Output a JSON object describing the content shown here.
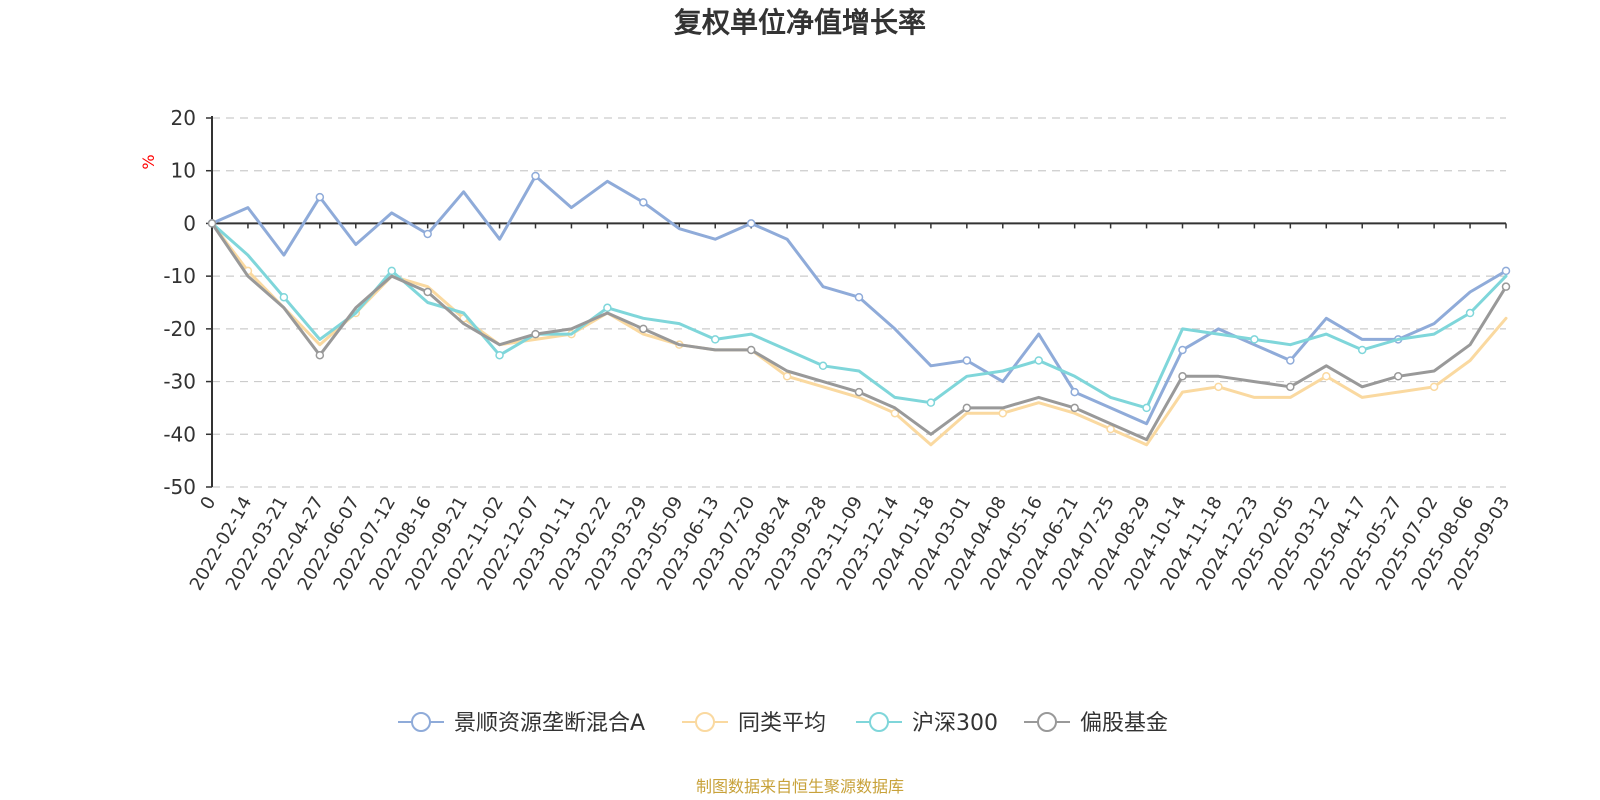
{
  "chart_data": {
    "type": "line",
    "title": "复权单位净值增长率",
    "ylabel": "%",
    "ylim": [
      -50,
      20
    ],
    "yticks": [
      "20",
      "10",
      "0",
      "-10",
      "-20",
      "-30",
      "-40",
      "-50"
    ],
    "grid": true,
    "legend_position": "bottom",
    "categories": [
      "0",
      "2022-02-14",
      "2022-03-21",
      "2022-04-27",
      "2022-06-07",
      "2022-07-12",
      "2022-08-16",
      "2022-09-21",
      "2022-11-02",
      "2022-12-07",
      "2023-01-11",
      "2023-02-22",
      "2023-03-29",
      "2023-05-09",
      "2023-06-13",
      "2023-07-20",
      "2023-08-24",
      "2023-09-28",
      "2023-11-09",
      "2023-12-14",
      "2024-01-18",
      "2024-03-01",
      "2024-04-08",
      "2024-05-16",
      "2024-06-21",
      "2024-07-25",
      "2024-08-29",
      "2024-10-14",
      "2024-11-18",
      "2024-12-23",
      "2025-02-05",
      "2025-03-12",
      "2025-04-17",
      "2025-05-27",
      "2025-07-02",
      "2025-08-06",
      "2025-09-03"
    ],
    "series": [
      {
        "name": "景顺资源垄断混合A",
        "color": "#8fabd9",
        "values": [
          0,
          3,
          -6,
          5,
          -4,
          2,
          -2,
          6,
          -3,
          9,
          3,
          8,
          4,
          -1,
          -3,
          0,
          -3,
          -12,
          -14,
          -20,
          -27,
          -26,
          -30,
          -21,
          -32,
          -35,
          -38,
          -24,
          -20,
          -23,
          -26,
          -18,
          -22,
          -22,
          -19,
          -13,
          -9
        ]
      },
      {
        "name": "同类平均",
        "color": "#fad9a0",
        "values": [
          0,
          -9,
          -16,
          -23,
          -17,
          -10,
          -12,
          -18,
          -23,
          -22,
          -21,
          -17,
          -21,
          -23,
          -24,
          -24,
          -29,
          -31,
          -33,
          -36,
          -42,
          -36,
          -36,
          -34,
          -36,
          -39,
          -42,
          -32,
          -31,
          -33,
          -33,
          -29,
          -33,
          -32,
          -31,
          -26,
          -18
        ]
      },
      {
        "name": "沪深300",
        "color": "#7fd6da",
        "values": [
          0,
          -6,
          -14,
          -22,
          -17,
          -9,
          -15,
          -17,
          -25,
          -21,
          -21,
          -16,
          -18,
          -19,
          -22,
          -21,
          -24,
          -27,
          -28,
          -33,
          -34,
          -29,
          -28,
          -26,
          -29,
          -33,
          -35,
          -20,
          -21,
          -22,
          -23,
          -21,
          -24,
          -22,
          -21,
          -17,
          -10
        ]
      },
      {
        "name": "偏股基金",
        "color": "#999999",
        "values": [
          0,
          -10,
          -16,
          -25,
          -16,
          -10,
          -13,
          -19,
          -23,
          -21,
          -20,
          -17,
          -20,
          -23,
          -24,
          -24,
          -28,
          -30,
          -32,
          -35,
          -40,
          -35,
          -35,
          -33,
          -35,
          -38,
          -41,
          -29,
          -29,
          -30,
          -31,
          -27,
          -31,
          -29,
          -28,
          -23,
          -12
        ]
      }
    ],
    "source": "制图数据来自恒生聚源数据库"
  }
}
